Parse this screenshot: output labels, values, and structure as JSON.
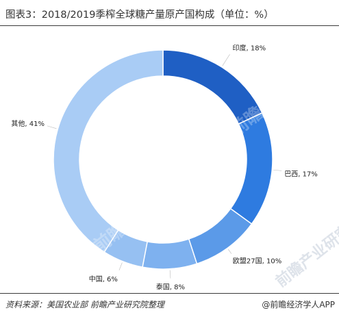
{
  "header": {
    "title": "图表3：2018/2019季榨全球糖产量原产国构成（单位：%）"
  },
  "footer": {
    "source": "资料来源：美国农业部  前瞻产业研究院整理",
    "credit": "@前瞻经济学人APP"
  },
  "watermark": {
    "text": "前瞻产业研究院"
  },
  "chart_data": {
    "type": "pie",
    "variant": "donut",
    "title": "图表3：2018/2019季榨全球糖产量原产国构成（单位：%）",
    "slices": [
      {
        "name": "印度",
        "value": 18,
        "label": "印度, 18%",
        "color": "#1f5fc4"
      },
      {
        "name": "巴西",
        "value": 17,
        "label": "巴西, 17%",
        "color": "#2e7be0"
      },
      {
        "name": "欧盟27国",
        "value": 10,
        "label": "欧盟27国, 10%",
        "color": "#5b9ae8"
      },
      {
        "name": "泰国",
        "value": 8,
        "label": "泰国, 8%",
        "color": "#7eb1ef"
      },
      {
        "name": "中国",
        "value": 6,
        "label": "中国, 6%",
        "color": "#96c0f2"
      },
      {
        "name": "其他",
        "value": 41,
        "label": "其他, 41%",
        "color": "#a9ccf5"
      }
    ],
    "start_angle_deg": 0,
    "direction": "clockwise",
    "legend": "none"
  }
}
